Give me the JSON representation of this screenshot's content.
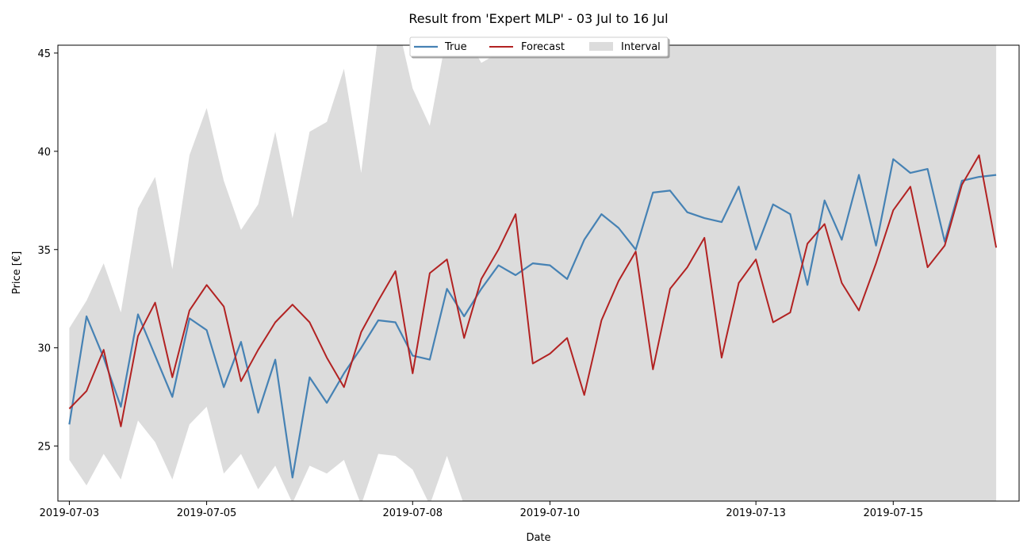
{
  "chart_data": {
    "type": "line",
    "title": "Result from 'Expert MLP' - 03 Jul to 16 Jul",
    "xlabel": "Date",
    "ylabel": "Price [€]",
    "xlim": [
      "2019-07-02T20:00",
      "2019-07-16T20:00"
    ],
    "ylim": [
      22.2,
      45.4
    ],
    "x_ticks": [
      "2019-07-03",
      "2019-07-05",
      "2019-07-08",
      "2019-07-10",
      "2019-07-13",
      "2019-07-15"
    ],
    "y_ticks": [
      25,
      30,
      35,
      40,
      45
    ],
    "grid": false,
    "legend_position": "top-center",
    "x": [
      "2019-07-03T00:00",
      "2019-07-03T06:00",
      "2019-07-03T12:00",
      "2019-07-03T18:00",
      "2019-07-04T00:00",
      "2019-07-04T06:00",
      "2019-07-04T12:00",
      "2019-07-04T18:00",
      "2019-07-05T00:00",
      "2019-07-05T06:00",
      "2019-07-05T12:00",
      "2019-07-05T18:00",
      "2019-07-06T00:00",
      "2019-07-06T06:00",
      "2019-07-06T12:00",
      "2019-07-06T18:00",
      "2019-07-07T00:00",
      "2019-07-07T06:00",
      "2019-07-07T12:00",
      "2019-07-07T18:00",
      "2019-07-08T00:00",
      "2019-07-08T06:00",
      "2019-07-08T12:00",
      "2019-07-08T18:00",
      "2019-07-09T00:00",
      "2019-07-09T06:00",
      "2019-07-09T12:00",
      "2019-07-09T18:00",
      "2019-07-10T00:00",
      "2019-07-10T06:00",
      "2019-07-10T12:00",
      "2019-07-10T18:00",
      "2019-07-11T00:00",
      "2019-07-11T06:00",
      "2019-07-11T12:00",
      "2019-07-11T18:00",
      "2019-07-12T00:00",
      "2019-07-12T06:00",
      "2019-07-12T12:00",
      "2019-07-12T18:00",
      "2019-07-13T00:00",
      "2019-07-13T06:00",
      "2019-07-13T12:00",
      "2019-07-13T18:00",
      "2019-07-14T00:00",
      "2019-07-14T06:00",
      "2019-07-14T12:00",
      "2019-07-14T18:00",
      "2019-07-15T00:00",
      "2019-07-15T06:00",
      "2019-07-15T12:00",
      "2019-07-15T18:00",
      "2019-07-16T00:00",
      "2019-07-16T06:00",
      "2019-07-16T12:00"
    ],
    "series": [
      {
        "name": "True",
        "color": "#4682b4",
        "values": [
          26.1,
          31.6,
          29.5,
          27.0,
          31.7,
          29.6,
          27.5,
          31.5,
          30.9,
          28.0,
          30.3,
          26.7,
          29.4,
          23.4,
          28.5,
          27.2,
          28.7,
          30.0,
          31.4,
          31.3,
          29.6,
          29.4,
          33.0,
          31.6,
          33.0,
          34.2,
          33.7,
          34.3,
          34.2,
          33.5,
          35.5,
          36.8,
          36.1,
          35.0,
          37.9,
          38.0,
          36.9,
          36.6,
          36.4,
          38.2,
          35.0,
          37.3,
          36.8,
          33.2,
          37.5,
          35.5,
          38.8,
          35.2,
          39.6,
          38.9,
          39.1,
          35.4,
          38.5,
          38.7,
          38.8
        ]
      },
      {
        "name": "Forecast",
        "color": "#b22222",
        "values": [
          26.9,
          27.8,
          29.9,
          26.0,
          30.6,
          32.3,
          28.5,
          31.9,
          33.2,
          32.1,
          28.3,
          29.9,
          31.3,
          32.2,
          31.3,
          29.5,
          28.0,
          30.8,
          32.4,
          33.9,
          28.7,
          33.8,
          34.5,
          30.5,
          33.5,
          35.0,
          36.8,
          29.2,
          29.7,
          30.5,
          27.6,
          31.4,
          33.4,
          34.9,
          28.9,
          33.0,
          34.1,
          35.6,
          29.5,
          33.3,
          34.5,
          31.3,
          31.8,
          35.3,
          36.3,
          33.3,
          31.9,
          34.3,
          37.0,
          38.2,
          34.1,
          35.2,
          38.3,
          39.8,
          35.1
        ]
      },
      {
        "name": "Interval",
        "color": "#dcdcdc",
        "lower": [
          24.3,
          23.0,
          24.6,
          23.3,
          26.3,
          25.2,
          23.3,
          26.1,
          27.0,
          23.6,
          24.6,
          22.8,
          24.0,
          22.1,
          24.0,
          23.6,
          24.3,
          22.0,
          24.6,
          24.5,
          23.8,
          22.0,
          24.5,
          22.0,
          22.0,
          22.0,
          22.0,
          22.0,
          22.0,
          22.0,
          22.0,
          22.0,
          22.0,
          22.0,
          22.0,
          22.0,
          22.0,
          22.0,
          22.0,
          22.0,
          22.0,
          22.0,
          22.0,
          22.0,
          22.0,
          22.0,
          22.0,
          22.0,
          22.0,
          22.0,
          22.0,
          22.0,
          22.0,
          22.0,
          22.0
        ],
        "upper": [
          31.0,
          32.4,
          34.3,
          31.8,
          37.1,
          38.7,
          34.0,
          39.8,
          42.2,
          38.5,
          36.0,
          37.3,
          41.0,
          36.6,
          41.0,
          41.5,
          44.2,
          38.9,
          46.0,
          47.0,
          43.2,
          41.3,
          46.0,
          46.0,
          44.5,
          45.0,
          46.0,
          45.6,
          46.0,
          46.0,
          46.0,
          46.0,
          46.0,
          46.0,
          46.0,
          46.0,
          46.0,
          46.0,
          46.0,
          46.0,
          46.0,
          46.0,
          46.0,
          46.0,
          46.0,
          46.0,
          46.0,
          46.0,
          46.0,
          46.0,
          46.0,
          46.0,
          46.0,
          46.0,
          46.0
        ]
      }
    ]
  },
  "legend": {
    "true_label": "True",
    "forecast_label": "Forecast",
    "interval_label": "Interval"
  }
}
